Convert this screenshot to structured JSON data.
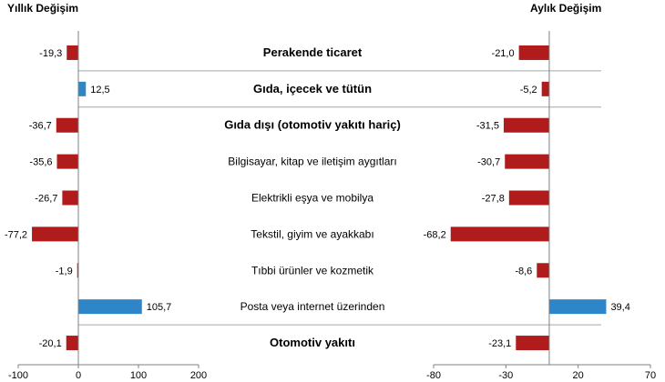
{
  "chart_data": [
    {
      "type": "bar",
      "orientation": "horizontal",
      "title": "Yıllık Değişim",
      "categories": [
        "Perakende ticaret",
        "Gıda, içecek ve tütün",
        "Gıda dışı (otomotiv yakıtı hariç)",
        "Bilgisayar, kitap ve iletişim aygıtları",
        "Elektrikli eşya ve mobilya",
        "Tekstil, giyim ve ayakkabı",
        "Tıbbi ürünler ve kozmetik",
        "Posta veya internet üzerinden",
        "Otomotiv yakıtı"
      ],
      "values": [
        -19.3,
        12.5,
        -36.7,
        -35.6,
        -26.7,
        -77.2,
        -1.9,
        105.7,
        -20.1
      ],
      "value_labels": [
        "-19,3",
        "12,5",
        "-36,7",
        "-35,6",
        "-26,7",
        "-77,2",
        "-1,9",
        "105,7",
        "-20,1"
      ],
      "xlim": [
        -100,
        200
      ],
      "xticks": [
        -100,
        0,
        100,
        200
      ],
      "xtick_labels": [
        "-100",
        "0",
        "100",
        "200"
      ]
    },
    {
      "type": "bar",
      "orientation": "horizontal",
      "title": "Aylık Değişim",
      "categories": [
        "Perakende ticaret",
        "Gıda, içecek ve tütün",
        "Gıda dışı (otomotiv yakıtı hariç)",
        "Bilgisayar, kitap ve iletişim aygıtları",
        "Elektrikli eşya ve mobilya",
        "Tekstil, giyim ve ayakkabı",
        "Tıbbi ürünler ve kozmetik",
        "Posta veya internet üzerinden",
        "Otomotiv yakıtı"
      ],
      "values": [
        -21.0,
        -5.2,
        -31.5,
        -30.7,
        -27.8,
        -68.2,
        -8.6,
        39.4,
        -23.1
      ],
      "value_labels": [
        "-21,0",
        "-5,2",
        "-31,5",
        "-30,7",
        "-27,8",
        "-68,2",
        "-8,6",
        "39,4",
        "-23,1"
      ],
      "xlim": [
        -80,
        70
      ],
      "xticks": [
        -80,
        -30,
        20,
        70
      ],
      "xtick_labels": [
        "-80",
        "-30",
        "20",
        "70"
      ]
    }
  ],
  "bold_categories": [
    "Perakende ticaret",
    "Gıda, içecek ve tütün",
    "Gıda dışı (otomotiv yakıtı hariç)",
    "Otomotiv yakıtı"
  ],
  "colors": {
    "negative": "#b01c1c",
    "positive": "#2e86c8",
    "separator": "#a6a6a6",
    "axis": "#808080"
  }
}
